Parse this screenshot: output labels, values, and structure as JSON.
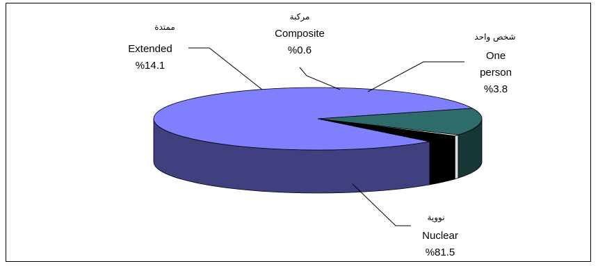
{
  "chart_data": {
    "type": "pie",
    "style": "3d",
    "colors": {
      "Nuclear": "#8080FF",
      "Extended": "#2E6B6B",
      "Composite": "#FFFFFF",
      "One person": "#000000",
      "outline": "#000000"
    },
    "slices": [
      {
        "name": "Nuclear",
        "name_ar": "نووية",
        "pct_label": "%81.5",
        "value": 81.5
      },
      {
        "name": "Extended",
        "name_ar": "ممتدة",
        "pct_label": "%14.1",
        "value": 14.1
      },
      {
        "name": "Composite",
        "name_ar": "مركبة",
        "pct_label": "%0.6",
        "value": 0.6
      },
      {
        "name": "One person",
        "name_ar": "شخص واحد",
        "name_lines": [
          "One",
          "person"
        ],
        "pct_label": "%3.8",
        "value": 3.8
      }
    ]
  }
}
